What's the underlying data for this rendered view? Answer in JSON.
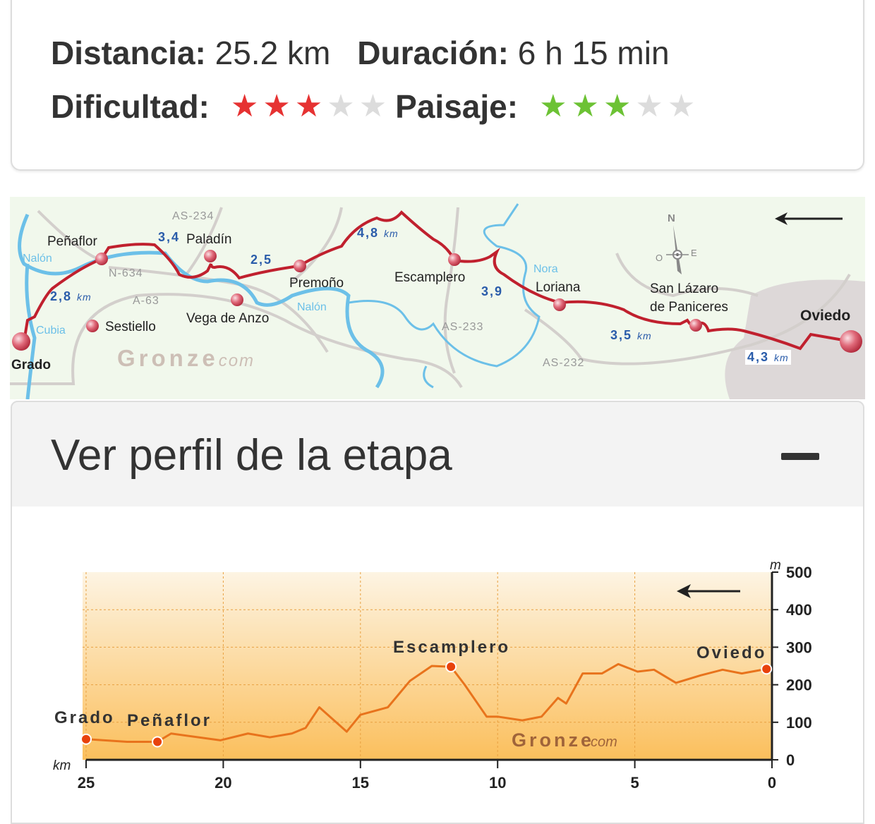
{
  "summary": {
    "distance_label": "Distancia:",
    "distance_value": "25.2 km",
    "duration_label": "Duración:",
    "duration_value": "6 h 15 min",
    "difficulty_label": "Dificultad:",
    "difficulty_rating": 3,
    "difficulty_max": 5,
    "difficulty_color": "#e63232",
    "landscape_label": "Paisaje:",
    "landscape_rating": 3,
    "landscape_max": 5,
    "landscape_color": "#6cc234",
    "empty_star_color": "#dcdcdc"
  },
  "map": {
    "places": {
      "grado": "Grado",
      "penaflor": "Peñaflor",
      "sestiello": "Sestiello",
      "paladin": "Paladín",
      "vega": "Vega de Anzo",
      "premono": "Premoño",
      "escamplero": "Escamplero",
      "loriana": "Loriana",
      "san_lazaro_1": "San Lázaro",
      "san_lazaro_2": "de Paniceres",
      "oviedo": "Oviedo"
    },
    "roads": {
      "as234": "AS-234",
      "n634": "N-634",
      "a63": "A-63",
      "as233": "AS-233",
      "as232": "AS-232"
    },
    "rivers": {
      "nalon1": "Nalón",
      "nalon2": "Nalón",
      "cubia": "Cubia",
      "nora": "Nora"
    },
    "segments": {
      "s1": "2,8",
      "s2": "3,4",
      "s3": "2,5",
      "s4": "4,8",
      "s5": "3,9",
      "s6": "3,5",
      "s7": "4,3",
      "unit": "km"
    },
    "compass": {
      "n": "N",
      "o": "O",
      "e": "E"
    },
    "watermark": "Gronze",
    "watermark_suffix": "com",
    "route_color": "#c0202e",
    "river_color": "#6cc0e8"
  },
  "accordion": {
    "title": "Ver perfil de la etapa",
    "state": "expanded"
  },
  "chart_data": {
    "type": "area",
    "xlabel": "km",
    "ylabel": "m",
    "xlim": [
      25,
      0
    ],
    "ylim": [
      0,
      500
    ],
    "xticks": [
      25,
      20,
      15,
      10,
      5,
      0
    ],
    "yticks": [
      0,
      100,
      200,
      300,
      400,
      500
    ],
    "grid": true,
    "direction": "right-to-left arrow",
    "line_color": "#e8731c",
    "fill_top": "#fdf4e3",
    "fill_bottom": "#fbbf5c",
    "x": [
      25,
      23.5,
      22.4,
      21.9,
      20.1,
      19.1,
      18.3,
      17.5,
      17.0,
      16.5,
      15.5,
      15.0,
      14.0,
      13.2,
      12.4,
      11.7,
      11.2,
      10.4,
      10.0,
      9.1,
      8.4,
      7.8,
      7.5,
      6.9,
      6.2,
      5.6,
      4.9,
      4.3,
      3.5,
      2.6,
      1.8,
      1.1,
      0.2
    ],
    "y": [
      55,
      48,
      48,
      70,
      52,
      70,
      60,
      70,
      85,
      140,
      75,
      120,
      140,
      210,
      250,
      248,
      200,
      115,
      115,
      105,
      115,
      165,
      150,
      230,
      230,
      255,
      235,
      240,
      205,
      225,
      240,
      230,
      242
    ],
    "points": [
      {
        "name": "Grado",
        "x": 25,
        "y": 55
      },
      {
        "name": "Peñaflor",
        "x": 22.4,
        "y": 48
      },
      {
        "name": "Escamplero",
        "x": 11.7,
        "y": 248
      },
      {
        "name": "Oviedo",
        "x": 0.2,
        "y": 242
      }
    ],
    "watermark": "Gronze",
    "watermark_suffix": "com"
  }
}
